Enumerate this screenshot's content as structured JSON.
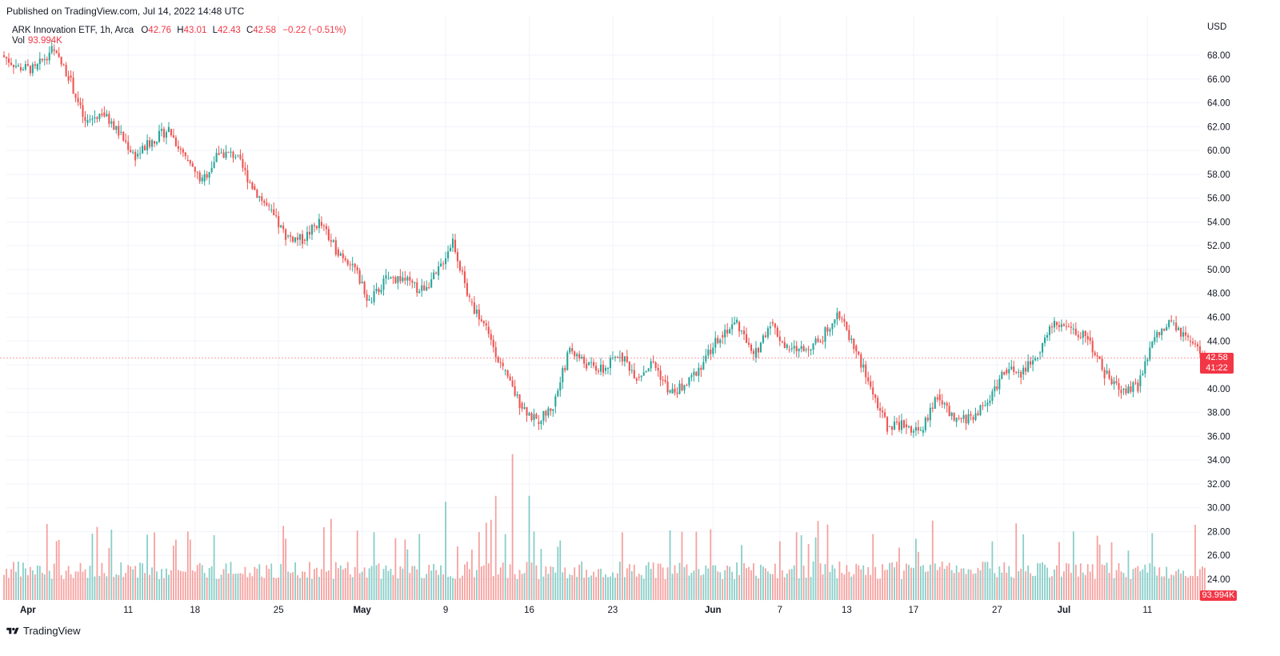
{
  "published": "Published on TradingView.com, Jul 14, 2022 14:48 UTC",
  "legend": {
    "symbol": "ARK Innovation ETF, 1h, Arca",
    "open_label": "O",
    "open": "42.76",
    "high_label": "H",
    "high": "43.01",
    "low_label": "L",
    "low": "42.43",
    "close_label": "C",
    "close": "42.58",
    "change": "−0.22 (−0.51%)",
    "vol_label": "Vol",
    "vol_value": "93.994K"
  },
  "axis": {
    "currency": "USD",
    "price_ticks": [
      "68.00",
      "66.00",
      "64.00",
      "62.00",
      "60.00",
      "58.00",
      "56.00",
      "54.00",
      "52.00",
      "50.00",
      "48.00",
      "46.00",
      "44.00",
      "42.00",
      "40.00",
      "38.00",
      "36.00",
      "34.00",
      "32.00",
      "30.00",
      "28.00",
      "26.00",
      "24.00"
    ],
    "time_ticks": [
      "Apr",
      "11",
      "18",
      "25",
      "May",
      "9",
      "16",
      "23",
      "Jun",
      "7",
      "13",
      "17",
      "27",
      "Jul",
      "11"
    ],
    "time_ticks_bold": [
      "Apr",
      "May",
      "Jun",
      "Jul"
    ]
  },
  "badges": {
    "last_price": "42.58",
    "countdown": "41:22",
    "volume": "93.994K"
  },
  "footer": {
    "brand": "TradingView"
  },
  "colors": {
    "up": "#26a69a",
    "down": "#ef5350",
    "badge": "#f23645",
    "grid": "#f0f3fa"
  },
  "chart_data": {
    "type": "candlestick",
    "title": "ARK Innovation ETF, 1h, Arca",
    "ylabel": "USD",
    "ylim": [
      22,
      70
    ],
    "interval": "1h",
    "period": [
      "2022-03-31",
      "2022-07-14"
    ],
    "close_path_daily": [
      {
        "date": "2022-03-31",
        "close": 67.0
      },
      {
        "date": "2022-04-01",
        "close": 66.8
      },
      {
        "date": "2022-04-04",
        "close": 68.5
      },
      {
        "date": "2022-04-05",
        "close": 66.3
      },
      {
        "date": "2022-04-06",
        "close": 62.3
      },
      {
        "date": "2022-04-07",
        "close": 63.2
      },
      {
        "date": "2022-04-08",
        "close": 61.5
      },
      {
        "date": "2022-04-11",
        "close": 59.5
      },
      {
        "date": "2022-04-12",
        "close": 60.8
      },
      {
        "date": "2022-04-13",
        "close": 61.8
      },
      {
        "date": "2022-04-14",
        "close": 59.2
      },
      {
        "date": "2022-04-18",
        "close": 57.4
      },
      {
        "date": "2022-04-19",
        "close": 59.8
      },
      {
        "date": "2022-04-20",
        "close": 59.6
      },
      {
        "date": "2022-04-21",
        "close": 57.0
      },
      {
        "date": "2022-04-22",
        "close": 55.0
      },
      {
        "date": "2022-04-25",
        "close": 52.8
      },
      {
        "date": "2022-04-26",
        "close": 52.5
      },
      {
        "date": "2022-04-27",
        "close": 54.0
      },
      {
        "date": "2022-04-28",
        "close": 51.7
      },
      {
        "date": "2022-04-29",
        "close": 50.5
      },
      {
        "date": "2022-05-02",
        "close": 47.2
      },
      {
        "date": "2022-05-03",
        "close": 49.2
      },
      {
        "date": "2022-05-04",
        "close": 49.3
      },
      {
        "date": "2022-05-05",
        "close": 48.2
      },
      {
        "date": "2022-05-06",
        "close": 49.5
      },
      {
        "date": "2022-05-09",
        "close": 52.5
      },
      {
        "date": "2022-05-10",
        "close": 47.3
      },
      {
        "date": "2022-05-11",
        "close": 45.2
      },
      {
        "date": "2022-05-12",
        "close": 41.5
      },
      {
        "date": "2022-05-13",
        "close": 38.8
      },
      {
        "date": "2022-05-16",
        "close": 37.2
      },
      {
        "date": "2022-05-17",
        "close": 38.5
      },
      {
        "date": "2022-05-18",
        "close": 43.4
      },
      {
        "date": "2022-05-19",
        "close": 42.0
      },
      {
        "date": "2022-05-20",
        "close": 41.5
      },
      {
        "date": "2022-05-23",
        "close": 43.0
      },
      {
        "date": "2022-05-24",
        "close": 41.0
      },
      {
        "date": "2022-05-25",
        "close": 42.2
      },
      {
        "date": "2022-05-26",
        "close": 39.6
      },
      {
        "date": "2022-05-27",
        "close": 40.3
      },
      {
        "date": "2022-05-31",
        "close": 42.3
      },
      {
        "date": "2022-06-01",
        "close": 44.5
      },
      {
        "date": "2022-06-02",
        "close": 45.6
      },
      {
        "date": "2022-06-03",
        "close": 42.6
      },
      {
        "date": "2022-06-06",
        "close": 45.6
      },
      {
        "date": "2022-06-07",
        "close": 43.3
      },
      {
        "date": "2022-06-08",
        "close": 43.3
      },
      {
        "date": "2022-06-09",
        "close": 44.0
      },
      {
        "date": "2022-06-10",
        "close": 46.5
      },
      {
        "date": "2022-06-13",
        "close": 43.6
      },
      {
        "date": "2022-06-14",
        "close": 40.1
      },
      {
        "date": "2022-06-15",
        "close": 36.8
      },
      {
        "date": "2022-06-16",
        "close": 37.0
      },
      {
        "date": "2022-06-17",
        "close": 36.3
      },
      {
        "date": "2022-06-21",
        "close": 39.5
      },
      {
        "date": "2022-06-22",
        "close": 37.2
      },
      {
        "date": "2022-06-23",
        "close": 37.6
      },
      {
        "date": "2022-06-24",
        "close": 38.8
      },
      {
        "date": "2022-06-27",
        "close": 41.6
      },
      {
        "date": "2022-06-28",
        "close": 41.2
      },
      {
        "date": "2022-06-29",
        "close": 43.0
      },
      {
        "date": "2022-06-30",
        "close": 45.6
      },
      {
        "date": "2022-07-01",
        "close": 45.0
      },
      {
        "date": "2022-07-05",
        "close": 44.3
      },
      {
        "date": "2022-07-06",
        "close": 41.3
      },
      {
        "date": "2022-07-07",
        "close": 39.9
      },
      {
        "date": "2022-07-08",
        "close": 40.2
      },
      {
        "date": "2022-07-11",
        "close": 44.3
      },
      {
        "date": "2022-07-12",
        "close": 45.5
      },
      {
        "date": "2022-07-13",
        "close": 44.0
      },
      {
        "date": "2022-07-14",
        "close": 42.58
      }
    ],
    "volume_spikes": [
      {
        "date": "2022-05-09",
        "volume": 30.5
      },
      {
        "date": "2022-05-12",
        "volume": 31.0
      },
      {
        "date": "2022-05-13",
        "volume": 34.5
      },
      {
        "date": "2022-05-16",
        "volume": 31.0
      }
    ],
    "volume_unit": "price-axis scale (overlay)",
    "last": {
      "open": 42.76,
      "high": 43.01,
      "low": 42.43,
      "close": 42.58,
      "change": -0.22,
      "change_pct": -0.51,
      "volume": "93.994K"
    }
  }
}
